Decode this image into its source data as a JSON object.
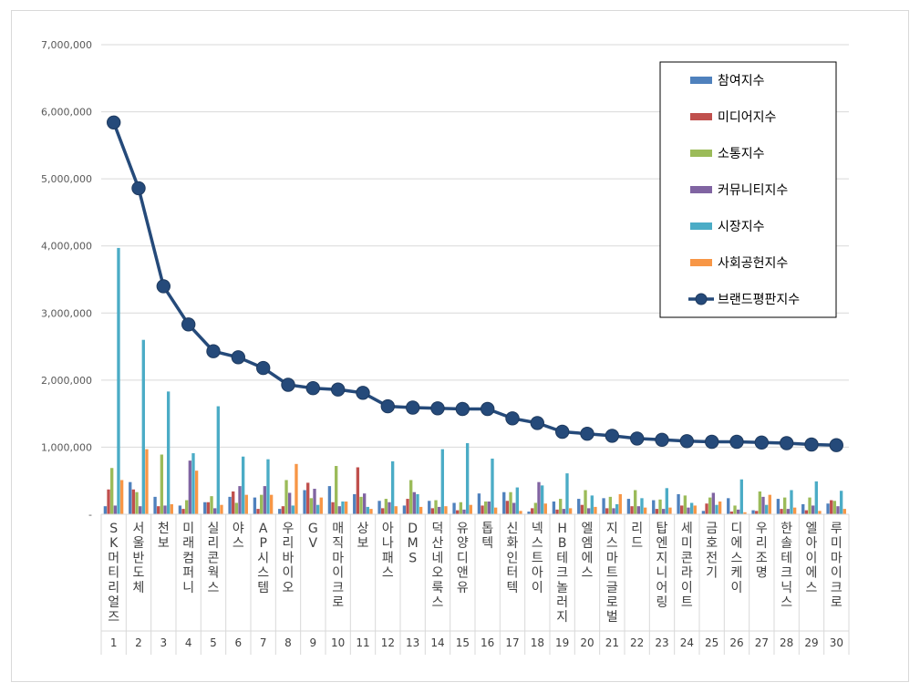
{
  "chart_data": {
    "type": "bar",
    "title": "",
    "xlabel": "",
    "ylabel": "",
    "ylim": [
      0,
      7000000
    ],
    "ytick_values": [
      0,
      1000000,
      2000000,
      3000000,
      4000000,
      5000000,
      6000000,
      7000000
    ],
    "ytick_labels": [
      "-",
      "1,000,000",
      "2,000,000",
      "3,000,000",
      "4,000,000",
      "5,000,000",
      "6,000,000",
      "7,000,000"
    ],
    "grid": true,
    "legend_position": "top-right",
    "ranks": [
      "1",
      "2",
      "3",
      "4",
      "5",
      "6",
      "7",
      "8",
      "9",
      "10",
      "11",
      "12",
      "13",
      "14",
      "15",
      "16",
      "17",
      "18",
      "19",
      "20",
      "21",
      "22",
      "23",
      "24",
      "25",
      "26",
      "27",
      "28",
      "29",
      "30"
    ],
    "categories": [
      "SK머티리얼즈",
      "서울반도체",
      "천보",
      "미래컴퍼니",
      "실리콘웍스",
      "야스",
      "AP시스템",
      "우리바이오",
      "GV",
      "매직마이크로",
      "상보",
      "아나패스",
      "DMS",
      "덕산네오룩스",
      "유양디앤유",
      "톱텍",
      "신화인터텍",
      "넥스트아이",
      "HB테크놀러지",
      "엘엠에스",
      "지스마트글로벌",
      "리드",
      "탑엔지니어링",
      "세미콘라이트",
      "금호전기",
      "디에스케이",
      "우리조명",
      "한솔테크닉스",
      "엘아이에스",
      "루미마이크로"
    ],
    "series": [
      {
        "name": "참여지수",
        "kind": "bar",
        "color": "#4f81bd",
        "values": [
          120000,
          480000,
          260000,
          130000,
          180000,
          260000,
          250000,
          80000,
          360000,
          420000,
          300000,
          200000,
          130000,
          200000,
          170000,
          310000,
          330000,
          40000,
          190000,
          230000,
          240000,
          230000,
          210000,
          300000,
          50000,
          240000,
          60000,
          230000,
          150000,
          160000
        ]
      },
      {
        "name": "미디어지수",
        "kind": "bar",
        "color": "#c0504d",
        "values": [
          370000,
          370000,
          120000,
          80000,
          180000,
          340000,
          80000,
          120000,
          470000,
          180000,
          700000,
          90000,
          230000,
          90000,
          60000,
          130000,
          200000,
          90000,
          70000,
          140000,
          90000,
          120000,
          80000,
          130000,
          160000,
          40000,
          50000,
          80000,
          60000,
          210000
        ]
      },
      {
        "name": "소통지수",
        "kind": "bar",
        "color": "#9bbb59",
        "values": [
          690000,
          330000,
          890000,
          210000,
          270000,
          170000,
          290000,
          510000,
          240000,
          720000,
          260000,
          230000,
          510000,
          210000,
          180000,
          190000,
          330000,
          170000,
          230000,
          360000,
          260000,
          360000,
          220000,
          280000,
          250000,
          130000,
          340000,
          250000,
          250000,
          200000
        ]
      },
      {
        "name": "커뮤니티지수",
        "kind": "bar",
        "color": "#8064a2",
        "values": [
          130000,
          120000,
          130000,
          800000,
          90000,
          420000,
          420000,
          320000,
          380000,
          120000,
          310000,
          180000,
          330000,
          110000,
          70000,
          190000,
          170000,
          480000,
          80000,
          90000,
          90000,
          120000,
          80000,
          100000,
          320000,
          70000,
          260000,
          80000,
          130000,
          120000
        ]
      },
      {
        "name": "시장지수",
        "kind": "bar",
        "color": "#4bacc6",
        "values": [
          3970000,
          2600000,
          1830000,
          910000,
          1610000,
          860000,
          820000,
          130000,
          140000,
          190000,
          110000,
          790000,
          300000,
          970000,
          1060000,
          830000,
          400000,
          430000,
          610000,
          280000,
          150000,
          240000,
          390000,
          170000,
          140000,
          520000,
          140000,
          360000,
          490000,
          350000
        ]
      },
      {
        "name": "사회공헌지수",
        "kind": "bar",
        "color": "#f79646",
        "values": [
          510000,
          970000,
          150000,
          650000,
          140000,
          290000,
          290000,
          750000,
          250000,
          190000,
          80000,
          120000,
          110000,
          120000,
          140000,
          100000,
          50000,
          160000,
          90000,
          110000,
          300000,
          100000,
          100000,
          130000,
          190000,
          30000,
          290000,
          100000,
          50000,
          80000
        ]
      },
      {
        "name": "브랜드평판지수",
        "kind": "line",
        "color": "#254a7a",
        "values": [
          5840000,
          4860000,
          3400000,
          2830000,
          2430000,
          2340000,
          2180000,
          1930000,
          1880000,
          1860000,
          1810000,
          1610000,
          1590000,
          1580000,
          1570000,
          1570000,
          1430000,
          1360000,
          1230000,
          1200000,
          1170000,
          1130000,
          1110000,
          1090000,
          1080000,
          1080000,
          1070000,
          1060000,
          1040000,
          1030000
        ]
      }
    ]
  }
}
